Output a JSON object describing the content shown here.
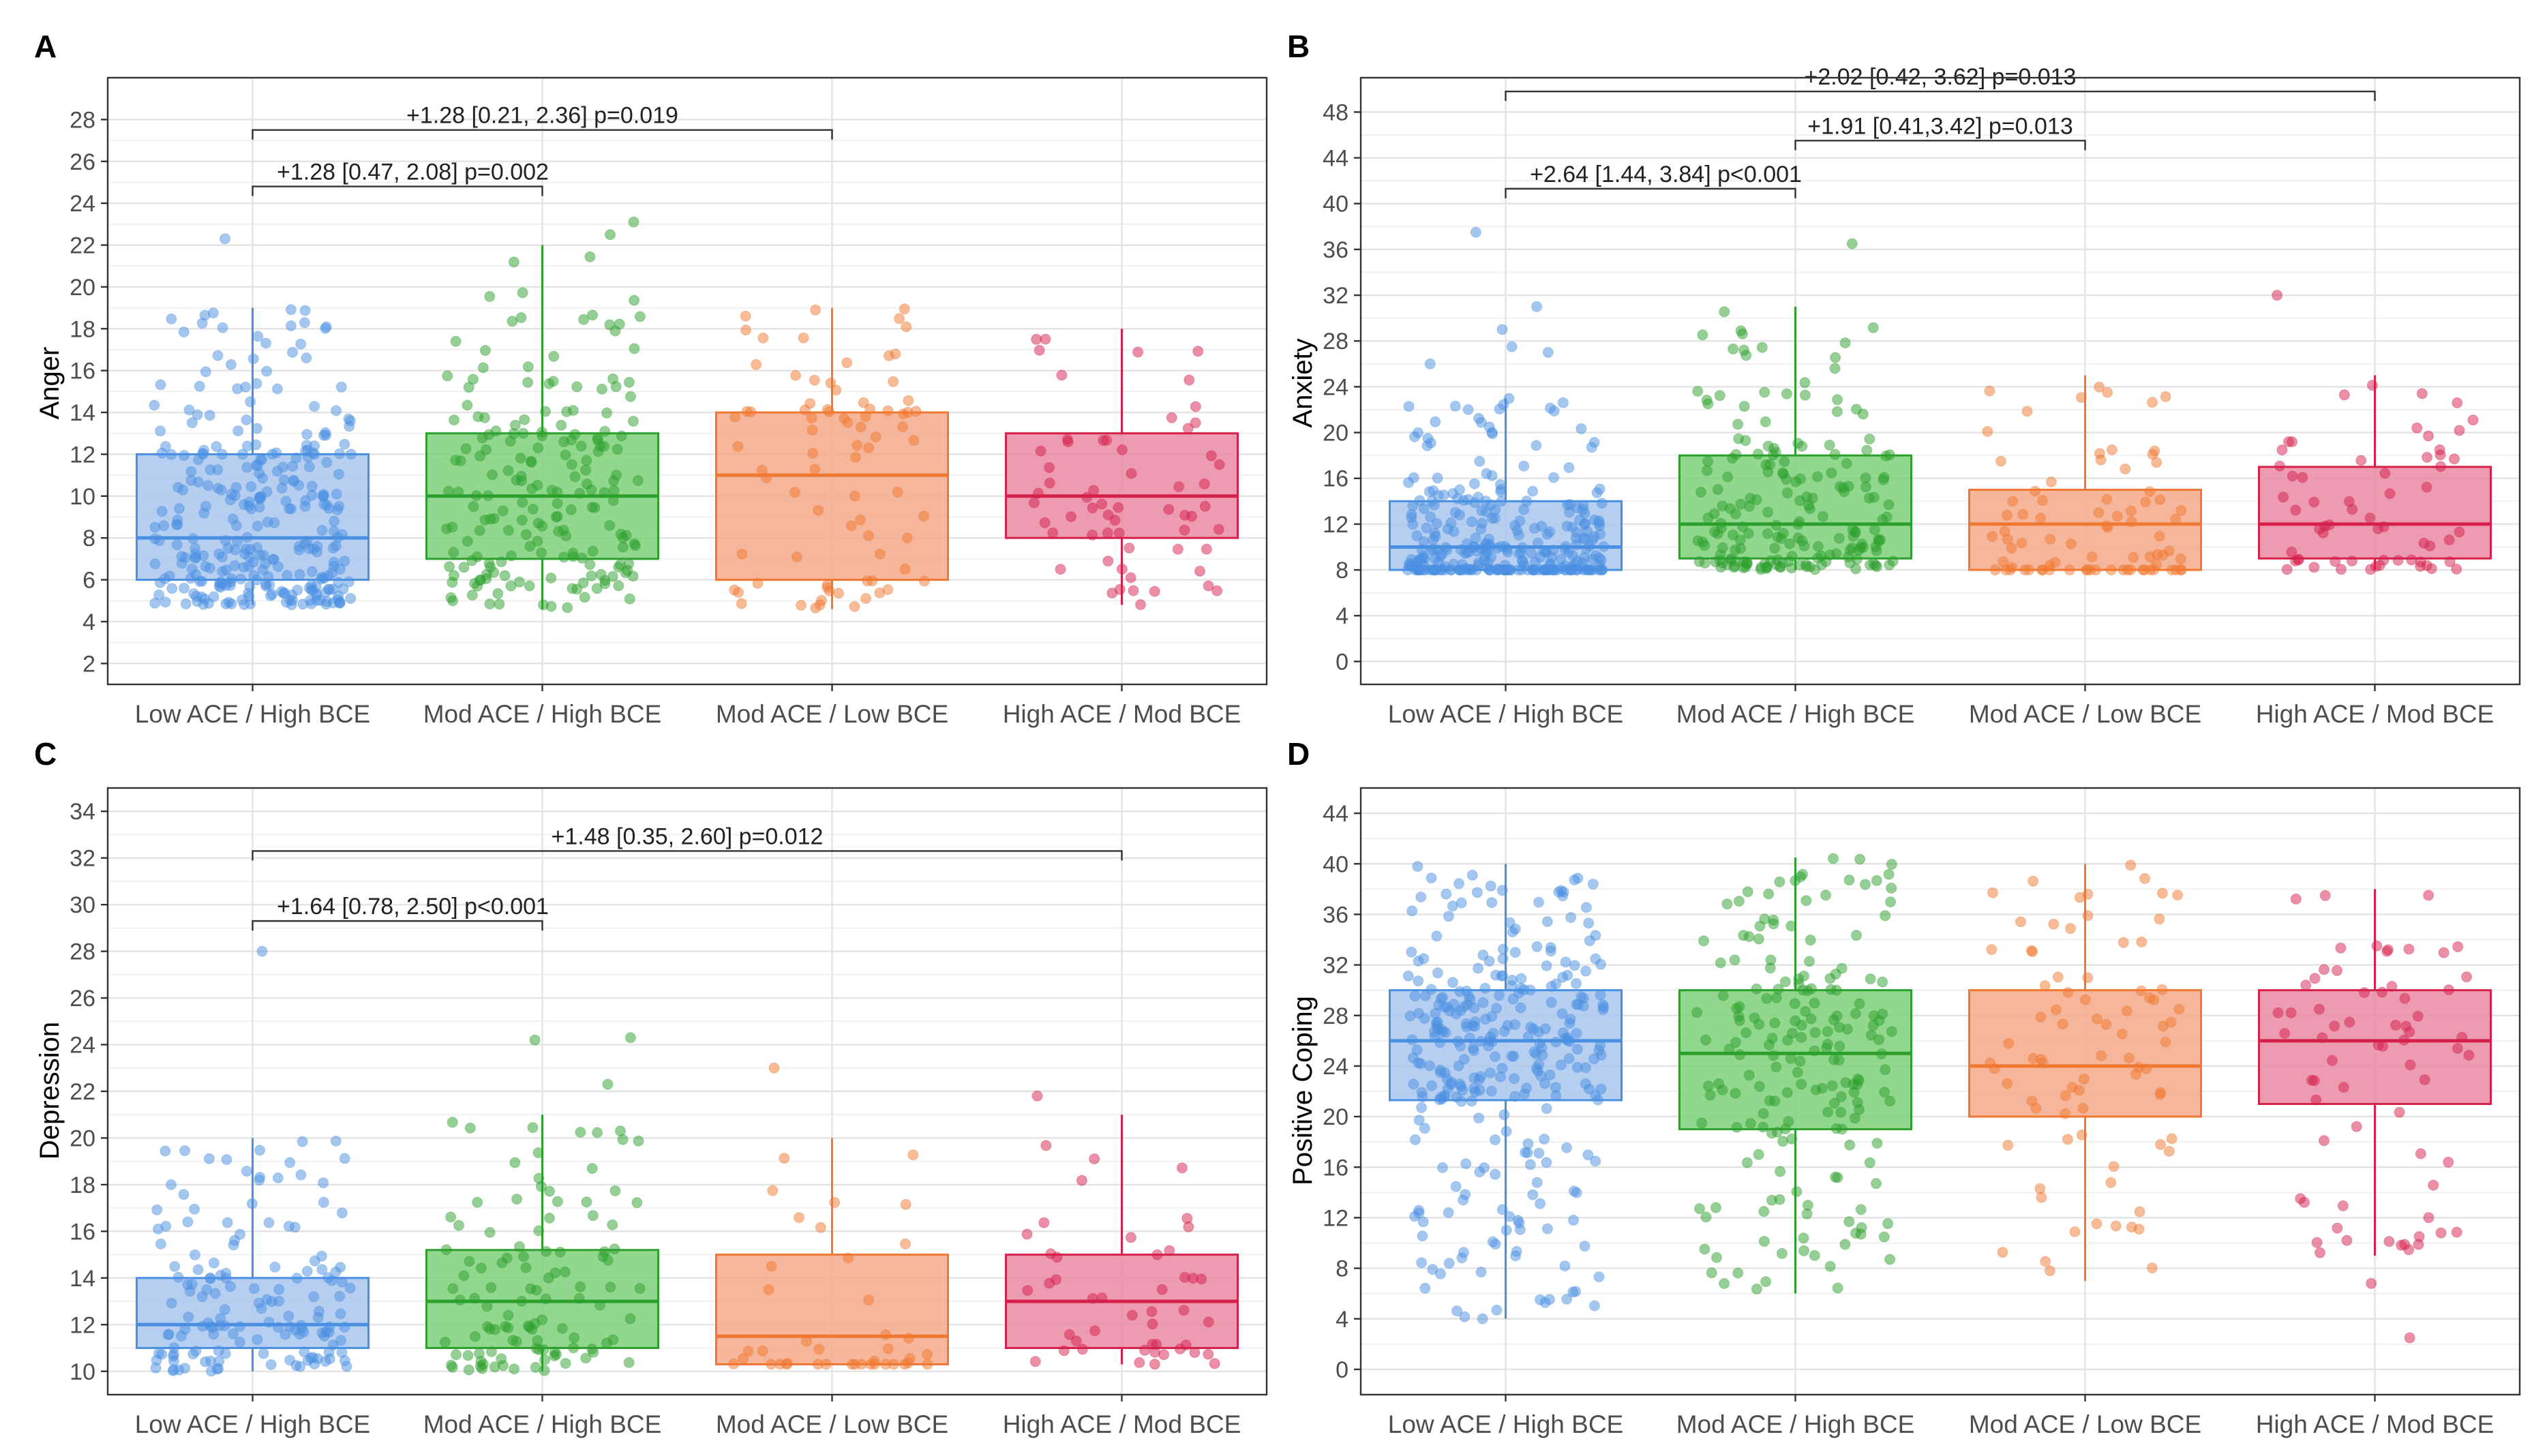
{
  "figure": {
    "categories": [
      "Low ACE / High BCE",
      "Mod ACE / High BCE",
      "Mod ACE / Low BCE",
      "High ACE / Mod BCE"
    ],
    "colors": [
      "#4a90e2",
      "#2ca02c",
      "#f07830",
      "#d6204c"
    ],
    "fills": [
      "#a9c7ee",
      "#7fd07a",
      "#f5a98a",
      "#e98aa3"
    ]
  },
  "chart_data": [
    {
      "panel": "A",
      "type": "box",
      "ylabel": "Anger",
      "ylim": [
        1,
        30
      ],
      "yticks": [
        2,
        4,
        6,
        8,
        10,
        12,
        14,
        16,
        18,
        20,
        22,
        24,
        26,
        28
      ],
      "boxes": [
        {
          "category": "Low ACE / High BCE",
          "whisker_low": 4.8,
          "q1": 6,
          "median": 8,
          "q3": 12,
          "whisker_high": 19,
          "outliers": [
            22.3
          ],
          "n": 300
        },
        {
          "category": "Mod ACE / High BCE",
          "whisker_low": 4.6,
          "q1": 7,
          "median": 10,
          "q3": 13,
          "whisker_high": 22,
          "outliers": [
            23.1,
            22.5
          ],
          "n": 190
        },
        {
          "category": "Mod ACE / Low BCE",
          "whisker_low": 4.6,
          "q1": 6,
          "median": 11,
          "q3": 14,
          "whisker_high": 19,
          "outliers": [],
          "n": 80
        },
        {
          "category": "High ACE / Mod BCE",
          "whisker_low": 4.8,
          "q1": 8,
          "median": 10,
          "q3": 13,
          "whisker_high": 18,
          "outliers": [],
          "n": 60
        }
      ],
      "comparisons": [
        {
          "from": 0,
          "to": 2,
          "y": 27.5,
          "label": "+1.28 [0.21, 2.36] p=0.019"
        },
        {
          "from": 0,
          "to": 1,
          "y": 24.8,
          "label": "+1.28 [0.47, 2.08] p=0.002"
        }
      ]
    },
    {
      "panel": "B",
      "type": "box",
      "ylabel": "Anxiety",
      "ylim": [
        -2,
        51
      ],
      "yticks": [
        0,
        4,
        8,
        12,
        16,
        20,
        24,
        28,
        32,
        36,
        40,
        44,
        48
      ],
      "boxes": [
        {
          "category": "Low ACE / High BCE",
          "whisker_low": 8,
          "q1": 8,
          "median": 10,
          "q3": 14,
          "whisker_high": 23,
          "outliers": [
            37.5,
            31,
            29,
            27.5,
            27,
            26
          ],
          "n": 300
        },
        {
          "category": "Mod ACE / High BCE",
          "whisker_low": 8,
          "q1": 9,
          "median": 12,
          "q3": 18,
          "whisker_high": 31,
          "outliers": [
            36.5
          ],
          "n": 190
        },
        {
          "category": "Mod ACE / Low BCE",
          "whisker_low": 8,
          "q1": 8,
          "median": 12,
          "q3": 15,
          "whisker_high": 25,
          "outliers": [],
          "n": 80
        },
        {
          "category": "High ACE / Mod BCE",
          "whisker_low": 8,
          "q1": 9,
          "median": 12,
          "q3": 17,
          "whisker_high": 25,
          "outliers": [
            32
          ],
          "n": 60
        }
      ],
      "comparisons": [
        {
          "from": 0,
          "to": 3,
          "y": 49.8,
          "label": "+2.02 [0.42, 3.62] p=0.013"
        },
        {
          "from": 1,
          "to": 2,
          "y": 45.5,
          "label": "+1.91 [0.41,3.42] p=0.013"
        },
        {
          "from": 0,
          "to": 1,
          "y": 41.3,
          "label": "+2.64 [1.44,  3.84] p<0.001"
        }
      ]
    },
    {
      "panel": "C",
      "type": "box",
      "ylabel": "Depression",
      "ylim": [
        9.0,
        35.0
      ],
      "yticks": [
        10,
        12,
        14,
        16,
        18,
        20,
        22,
        24,
        26,
        28,
        30,
        32,
        34
      ],
      "boxes": [
        {
          "category": "Low ACE / High BCE",
          "whisker_low": 10,
          "q1": 11,
          "median": 12,
          "q3": 14,
          "whisker_high": 20,
          "outliers": [
            28
          ],
          "n": 150
        },
        {
          "category": "Mod ACE / High BCE",
          "whisker_low": 10,
          "q1": 11,
          "median": 13,
          "q3": 15.2,
          "whisker_high": 21,
          "outliers": [
            24.3,
            24.2,
            22.3
          ],
          "n": 110
        },
        {
          "category": "Mod ACE / Low BCE",
          "whisker_low": 10.3,
          "q1": 10.3,
          "median": 11.5,
          "q3": 15,
          "whisker_high": 20,
          "outliers": [
            23
          ],
          "n": 40
        },
        {
          "category": "High ACE / Mod BCE",
          "whisker_low": 10.3,
          "q1": 11,
          "median": 13,
          "q3": 15,
          "whisker_high": 21,
          "outliers": [
            21.8
          ],
          "n": 45
        }
      ],
      "comparisons": [
        {
          "from": 0,
          "to": 3,
          "y": 32.3,
          "label": "+1.48 [0.35, 2.60] p=0.012"
        },
        {
          "from": 0,
          "to": 1,
          "y": 29.3,
          "label": "+1.64 [0.78, 2.50] p<0.001"
        }
      ]
    },
    {
      "panel": "D",
      "type": "box",
      "ylabel": "Positive Coping",
      "ylim": [
        -2,
        46
      ],
      "yticks": [
        0,
        4,
        8,
        12,
        16,
        20,
        24,
        28,
        32,
        36,
        40,
        44
      ],
      "boxes": [
        {
          "category": "Low ACE / High BCE",
          "whisker_low": 4,
          "q1": 21.3,
          "median": 26,
          "q3": 30,
          "whisker_high": 40,
          "outliers": [],
          "n": 300
        },
        {
          "category": "Mod ACE / High BCE",
          "whisker_low": 6,
          "q1": 19,
          "median": 25,
          "q3": 30,
          "whisker_high": 40.5,
          "outliers": [],
          "n": 190
        },
        {
          "category": "Mod ACE / Low BCE",
          "whisker_low": 7,
          "q1": 20,
          "median": 24,
          "q3": 30,
          "whisker_high": 40,
          "outliers": [],
          "n": 80
        },
        {
          "category": "High ACE / Mod BCE",
          "whisker_low": 9,
          "q1": 21,
          "median": 26,
          "q3": 30,
          "whisker_high": 38,
          "outliers": [
            6.8,
            10.2,
            2.5
          ],
          "n": 65
        }
      ],
      "comparisons": []
    }
  ]
}
